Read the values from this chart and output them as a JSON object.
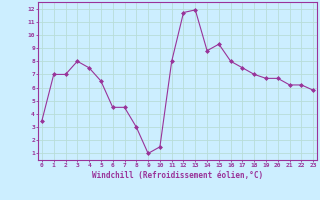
{
  "x": [
    0,
    1,
    2,
    3,
    4,
    5,
    6,
    7,
    8,
    9,
    10,
    11,
    12,
    13,
    14,
    15,
    16,
    17,
    18,
    19,
    20,
    21,
    22,
    23
  ],
  "y": [
    3.5,
    7.0,
    7.0,
    8.0,
    7.5,
    6.5,
    4.5,
    4.5,
    3.0,
    1.0,
    1.5,
    8.0,
    11.7,
    11.9,
    8.8,
    9.3,
    8.0,
    7.5,
    7.0,
    6.7,
    6.7,
    6.2,
    6.2,
    5.8
  ],
  "xlabel": "Windchill (Refroidissement éolien,°C)",
  "yticks": [
    1,
    2,
    3,
    4,
    5,
    6,
    7,
    8,
    9,
    10,
    11,
    12
  ],
  "xticks": [
    0,
    1,
    2,
    3,
    4,
    5,
    6,
    7,
    8,
    9,
    10,
    11,
    12,
    13,
    14,
    15,
    16,
    17,
    18,
    19,
    20,
    21,
    22,
    23
  ],
  "line_color": "#993399",
  "marker": "D",
  "marker_size": 2,
  "bg_color": "#cceeff",
  "grid_color": "#aaddcc",
  "tick_color": "#993399",
  "label_color": "#993399"
}
